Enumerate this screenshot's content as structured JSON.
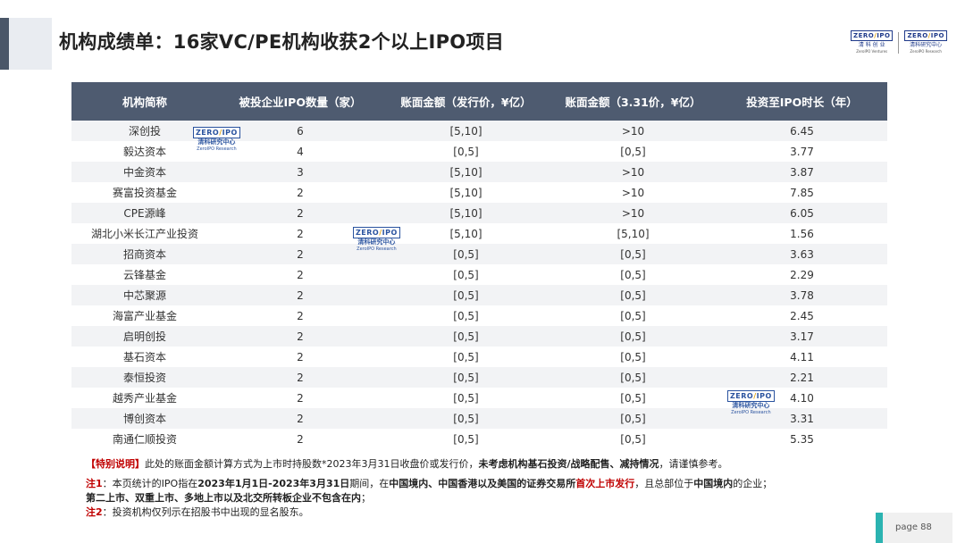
{
  "title": "机构成绩单：16家VC/PE机构收获2个以上IPO项目",
  "logo": {
    "brand_left": "ZERO",
    "brand_right": "IPO",
    "line1": "清 科 创 业",
    "line1_b": "清科研究中心",
    "line2": "ZeroIPO Ventures",
    "line2_b": "ZeroIPO Research"
  },
  "watermark": {
    "brand_left": "ZERO",
    "brand_right": "IPO",
    "cn": "清科研究中心",
    "en": "ZeroIPO Research"
  },
  "table": {
    "headers": [
      "机构简称",
      "被投企业IPO数量（家）",
      "账面金额（发行价，¥亿）",
      "账面金额（3.31价，¥亿）",
      "投资至IPO时长（年）"
    ],
    "rows": [
      [
        "深创投",
        "6",
        "[5,10]",
        ">10",
        "6.45"
      ],
      [
        "毅达资本",
        "4",
        "[0,5]",
        "[0,5]",
        "3.77"
      ],
      [
        "中金资本",
        "3",
        "[5,10]",
        ">10",
        "3.87"
      ],
      [
        "赛富投资基金",
        "2",
        "[5,10]",
        ">10",
        "7.85"
      ],
      [
        "CPE源峰",
        "2",
        "[5,10]",
        ">10",
        "6.05"
      ],
      [
        "湖北小米长江产业投资",
        "2",
        "[5,10]",
        "[5,10]",
        "1.56"
      ],
      [
        "招商资本",
        "2",
        "[0,5]",
        "[0,5]",
        "3.63"
      ],
      [
        "云锋基金",
        "2",
        "[0,5]",
        "[0,5]",
        "2.29"
      ],
      [
        "中芯聚源",
        "2",
        "[0,5]",
        "[0,5]",
        "3.78"
      ],
      [
        "海富产业基金",
        "2",
        "[0,5]",
        "[0,5]",
        "2.45"
      ],
      [
        "启明创投",
        "2",
        "[0,5]",
        "[0,5]",
        "3.17"
      ],
      [
        "基石资本",
        "2",
        "[0,5]",
        "[0,5]",
        "4.11"
      ],
      [
        "泰恒投资",
        "2",
        "[0,5]",
        "[0,5]",
        "2.21"
      ],
      [
        "越秀产业基金",
        "2",
        "[0,5]",
        "[0,5]",
        "4.10"
      ],
      [
        "博创资本",
        "2",
        "[0,5]",
        "[0,5]",
        "3.31"
      ],
      [
        "南通仁顺投资",
        "2",
        "[0,5]",
        "[0,5]",
        "5.35"
      ]
    ]
  },
  "notes": {
    "special_label": "【特别说明】",
    "special_a": "此处的账面金额计算方式为上市时持股数*2023年3月31日收盘价或发行价，",
    "special_b": "未考虑机构基石投资/战略配售、减持情况",
    "special_c": "，请谨慎参考。",
    "note1_label": "注1",
    "note1_a": "：本页统计的IPO指在",
    "note1_b": "2023年1月1日-2023年3月31日",
    "note1_c": "期间，在",
    "note1_d": "中国境内、中国香港以及美国的证券交易所",
    "note1_e": "首次上市发行",
    "note1_f": "，且总部位于",
    "note1_g": "中国境内",
    "note1_h": "的企业；",
    "note1_i": "第二上市、双重上市、多地上市以及北交所转板企业不包含在内",
    "note1_j": "；",
    "note2_label": "注2",
    "note2_text": "：投资机构仅列示在招股书中出现的显名股东。"
  },
  "page": {
    "label": "page  88"
  },
  "colors": {
    "header_bg": "#4e5b70",
    "accent": "#2bb3b1",
    "highlight_red": "#c00000"
  }
}
